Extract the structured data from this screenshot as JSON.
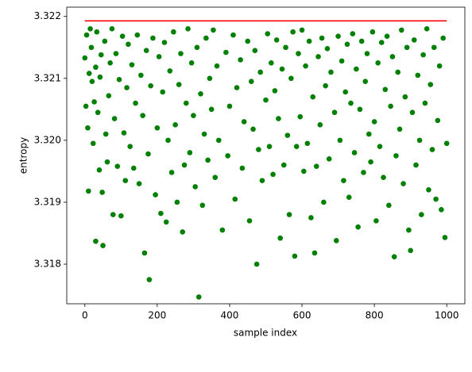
{
  "chart_data": {
    "type": "scatter",
    "x_label": "sample index",
    "y_label": "entropy",
    "xlim": [
      -50,
      1050
    ],
    "ylim": [
      3.31736,
      3.32215
    ],
    "xticks": [
      0,
      200,
      400,
      600,
      800,
      1000
    ],
    "yticks": [
      3.318,
      3.319,
      {
        "value": 3.32,
        "label": "3.320"
      },
      3.321,
      3.322
    ],
    "color": "#008000",
    "x": [
      0,
      3,
      5,
      8,
      10,
      12,
      15,
      18,
      20,
      23,
      26,
      30,
      33,
      36,
      40,
      42,
      45,
      48,
      55,
      58,
      62,
      66,
      70,
      75,
      78,
      82,
      86,
      90,
      95,
      100,
      104,
      108,
      112,
      116,
      120,
      125,
      130,
      135,
      140,
      145,
      150,
      155,
      160,
      170,
      175,
      182,
      188,
      195,
      200,
      205,
      210,
      215,
      220,
      225,
      230,
      235,
      240,
      245,
      250,
      255,
      260,
      265,
      275,
      280,
      285,
      290,
      295,
      300,
      305,
      310,
      320,
      325,
      330,
      335,
      340,
      345,
      350,
      355,
      360,
      365,
      370,
      390,
      395,
      400,
      410,
      415,
      420,
      430,
      435,
      440,
      450,
      455,
      460,
      465,
      470,
      480,
      485,
      490,
      500,
      505,
      510,
      515,
      520,
      525,
      530,
      535,
      540,
      545,
      550,
      555,
      560,
      565,
      570,
      575,
      585,
      590,
      595,
      600,
      605,
      610,
      615,
      620,
      625,
      630,
      640,
      645,
      650,
      655,
      660,
      665,
      670,
      675,
      680,
      690,
      695,
      700,
      705,
      710,
      715,
      720,
      725,
      730,
      735,
      740,
      745,
      750,
      755,
      760,
      765,
      770,
      775,
      780,
      785,
      790,
      795,
      800,
      805,
      810,
      815,
      820,
      825,
      830,
      835,
      840,
      845,
      850,
      860,
      865,
      870,
      875,
      880,
      885,
      890,
      895,
      905,
      910,
      915,
      920,
      925,
      930,
      935,
      940,
      945,
      950,
      955,
      960,
      965,
      970,
      975,
      980,
      985,
      990,
      1000,
      315,
      178,
      165,
      475,
      30,
      50,
      580,
      855,
      900,
      635,
      995,
      270,
      380
    ],
    "values": [
      3.32133,
      3.32055,
      3.3217,
      3.3202,
      3.31918,
      3.32108,
      3.3218,
      3.3215,
      3.32095,
      3.31995,
      3.32062,
      3.32118,
      3.32175,
      3.32045,
      3.31952,
      3.32102,
      3.32138,
      3.31916,
      3.3216,
      3.3201,
      3.31965,
      3.32072,
      3.32125,
      3.3218,
      3.3188,
      3.32035,
      3.3214,
      3.31958,
      3.32098,
      3.31878,
      3.32168,
      3.32012,
      3.31935,
      3.32085,
      3.32155,
      3.3199,
      3.32122,
      3.31955,
      3.3206,
      3.3217,
      3.3193,
      3.32105,
      3.3204,
      3.32145,
      3.31978,
      3.32088,
      3.32165,
      3.31912,
      3.3202,
      3.32135,
      3.31882,
      3.32078,
      3.32158,
      3.31868,
      3.32,
      3.32112,
      3.31948,
      3.32175,
      3.32025,
      3.319,
      3.3209,
      3.3214,
      3.3196,
      3.3206,
      3.3218,
      3.3198,
      3.32125,
      3.3204,
      3.31925,
      3.3215,
      3.32075,
      3.31895,
      3.3201,
      3.32165,
      3.31968,
      3.321,
      3.3205,
      3.32178,
      3.3194,
      3.3212,
      3.32,
      3.32142,
      3.31975,
      3.32055,
      3.3217,
      3.31905,
      3.32085,
      3.3213,
      3.31955,
      3.3203,
      3.3216,
      3.3187,
      3.32095,
      3.32018,
      3.32145,
      3.31985,
      3.3211,
      3.31935,
      3.32065,
      3.32172,
      3.3199,
      3.32125,
      3.31945,
      3.3208,
      3.32162,
      3.32035,
      3.31842,
      3.32115,
      3.3196,
      3.3215,
      3.32008,
      3.3188,
      3.321,
      3.32175,
      3.3199,
      3.3214,
      3.32038,
      3.32178,
      3.3195,
      3.3212,
      3.31995,
      3.3216,
      3.31875,
      3.3207,
      3.31958,
      3.32135,
      3.32025,
      3.32165,
      3.319,
      3.32088,
      3.32148,
      3.3197,
      3.3211,
      3.32045,
      3.31838,
      3.32168,
      3.32,
      3.32128,
      3.31935,
      3.32078,
      3.32155,
      3.31908,
      3.3206,
      3.32172,
      3.3198,
      3.32115,
      3.3186,
      3.3205,
      3.3216,
      3.31948,
      3.32095,
      3.3214,
      3.3201,
      3.31965,
      3.32175,
      3.3203,
      3.3187,
      3.32125,
      3.3199,
      3.32158,
      3.3194,
      3.32082,
      3.32168,
      3.31895,
      3.32055,
      3.32135,
      3.31975,
      3.3211,
      3.32018,
      3.32178,
      3.3193,
      3.3207,
      3.3215,
      3.31855,
      3.32045,
      3.32162,
      3.3196,
      3.32105,
      3.32,
      3.3188,
      3.32138,
      3.3206,
      3.3218,
      3.3192,
      3.3209,
      3.31985,
      3.3215,
      3.31905,
      3.32032,
      3.3212,
      3.31888,
      3.32165,
      3.31995,
      3.31747,
      3.31775,
      3.31818,
      3.318,
      3.31837,
      3.3183,
      3.31813,
      3.31812,
      3.31822,
      3.31818,
      3.31843,
      3.31852,
      3.31855
    ],
    "line": {
      "x": [
        0,
        1000
      ],
      "values": [
        3.321928,
        3.321928
      ],
      "color": "#ff0000"
    }
  }
}
